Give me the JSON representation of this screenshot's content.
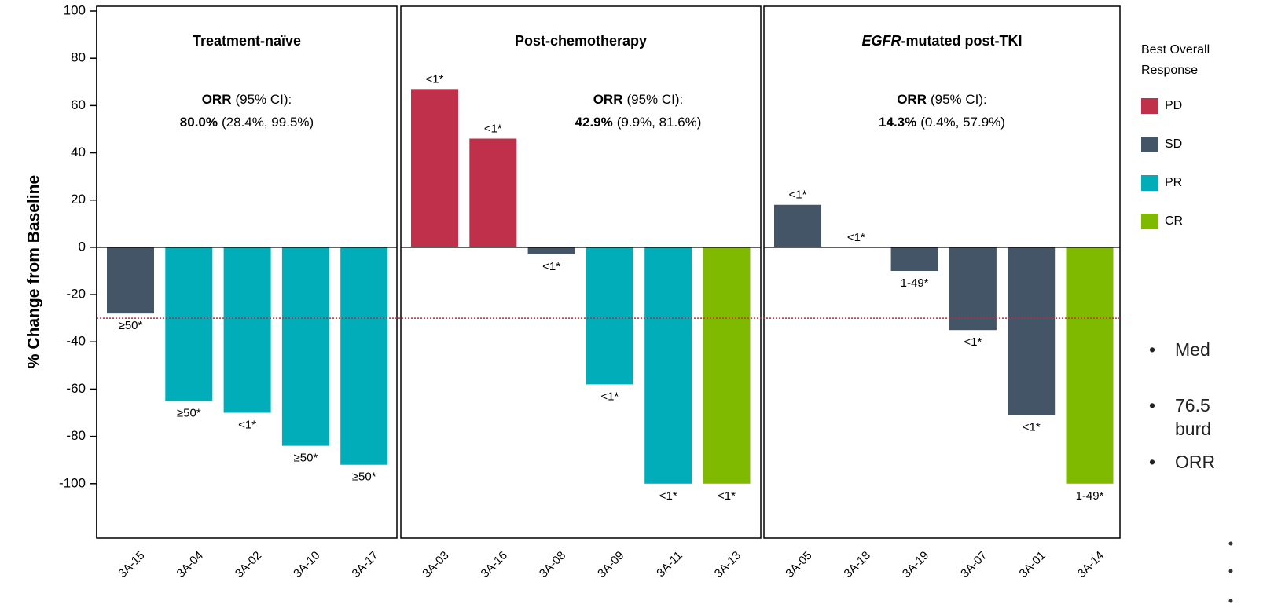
{
  "chart_data": {
    "type": "bar",
    "y_label": "% Change from Baseline",
    "ylim": [
      -123,
      102
    ],
    "yticks": [
      -100,
      -80,
      -60,
      -40,
      -20,
      0,
      20,
      40,
      60,
      80,
      100
    ],
    "reference_line": -30,
    "legend_title": [
      "Best Overall",
      "Response"
    ],
    "legend": [
      {
        "name": "PD",
        "color": "#c0304a"
      },
      {
        "name": "SD",
        "color": "#435566"
      },
      {
        "name": "PR",
        "color": "#00adb9"
      },
      {
        "name": "CR",
        "color": "#7fba00"
      }
    ],
    "panels": [
      {
        "title_italic": null,
        "title": "Treatment-naïve",
        "orr_label": "ORR",
        "orr_ci_label": "(95% CI):",
        "orr": "80.0%",
        "ci": "(28.4%, 99.5%)",
        "categories": [
          "3A-15",
          "3A-04",
          "3A-02",
          "3A-10",
          "3A-17"
        ],
        "values": [
          -28,
          -65,
          -70,
          -84,
          -92
        ],
        "responses": [
          "SD",
          "PR",
          "PR",
          "PR",
          "PR"
        ],
        "value_labels": [
          "≥50*",
          "≥50*",
          "<1*",
          "≥50*",
          "≥50*"
        ]
      },
      {
        "title_italic": null,
        "title": "Post-chemotherapy",
        "orr_label": "ORR",
        "orr_ci_label": "(95% CI):",
        "orr": "42.9%",
        "ci": "(9.9%, 81.6%)",
        "categories": [
          "3A-03",
          "3A-16",
          "3A-08",
          "3A-09",
          "3A-11",
          "3A-13"
        ],
        "values": [
          67,
          46,
          -3,
          -58,
          -100,
          -100
        ],
        "responses": [
          "PD",
          "PD",
          "SD",
          "PR",
          "PR",
          "CR"
        ],
        "value_labels": [
          "<1*",
          "<1*",
          "<1*",
          "<1*",
          "<1*",
          "<1*"
        ]
      },
      {
        "title_italic": "EGFR",
        "title": "-mutated post-TKI",
        "orr_label": "ORR",
        "orr_ci_label": "(95% CI):",
        "orr": "14.3%",
        "ci": "(0.4%, 57.9%)",
        "categories": [
          "3A-05",
          "3A-18",
          "3A-19",
          "3A-07",
          "3A-01",
          "3A-14"
        ],
        "values": [
          18,
          0,
          -10,
          -35,
          -71,
          -100
        ],
        "responses": [
          "SD",
          null,
          "SD",
          "SD",
          "SD",
          "CR"
        ],
        "value_labels": [
          "<1*",
          "<1*",
          "1-49*",
          "<1*",
          "<1*",
          "1-49*"
        ]
      }
    ],
    "side_text": [
      "Med",
      "76.5",
      "burd",
      "ORR"
    ]
  }
}
